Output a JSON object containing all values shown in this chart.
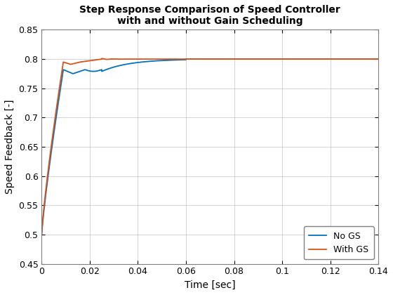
{
  "title_line1": "Step Response Comparison of Speed Controller",
  "title_line2": "with and without Gain Scheduling",
  "xlabel": "Time [sec]",
  "ylabel": "Speed Feedback [-]",
  "xlim": [
    0,
    0.14
  ],
  "ylim": [
    0.45,
    0.85
  ],
  "yticks": [
    0.45,
    0.5,
    0.55,
    0.6,
    0.65,
    0.7,
    0.75,
    0.8,
    0.85
  ],
  "xticks": [
    0,
    0.02,
    0.04,
    0.06,
    0.08,
    0.1,
    0.12,
    0.14
  ],
  "color_no_gs": "#0072BD",
  "color_with_gs": "#D95319",
  "legend_labels": [
    "No GS",
    "With GS"
  ],
  "background_color": "#FFFFFF",
  "grid_color": "#C0C0C0",
  "title_fontsize": 10,
  "label_fontsize": 10,
  "tick_fontsize": 9,
  "title_fontweight": "bold"
}
